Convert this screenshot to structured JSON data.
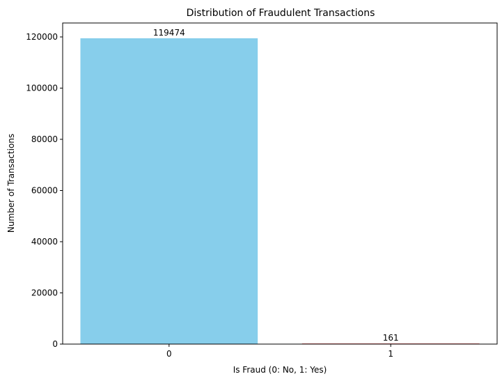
{
  "chart_data": {
    "type": "bar",
    "title": "Distribution of Fraudulent Transactions",
    "xlabel": "Is Fraud (0: No, 1: Yes)",
    "ylabel": "Number of Transactions",
    "categories": [
      "0",
      "1"
    ],
    "values": [
      119474,
      161
    ],
    "data_labels": [
      "119474",
      "161"
    ],
    "bar_colors": [
      "#87ceeb",
      "#f08080"
    ],
    "ylim": [
      0,
      125447
    ],
    "y_ticks": [
      0,
      20000,
      40000,
      60000,
      80000,
      100000,
      120000
    ],
    "y_tick_labels": [
      "0",
      "20000",
      "40000",
      "60000",
      "80000",
      "100000",
      "120000"
    ],
    "grid": false,
    "legend": "none"
  }
}
